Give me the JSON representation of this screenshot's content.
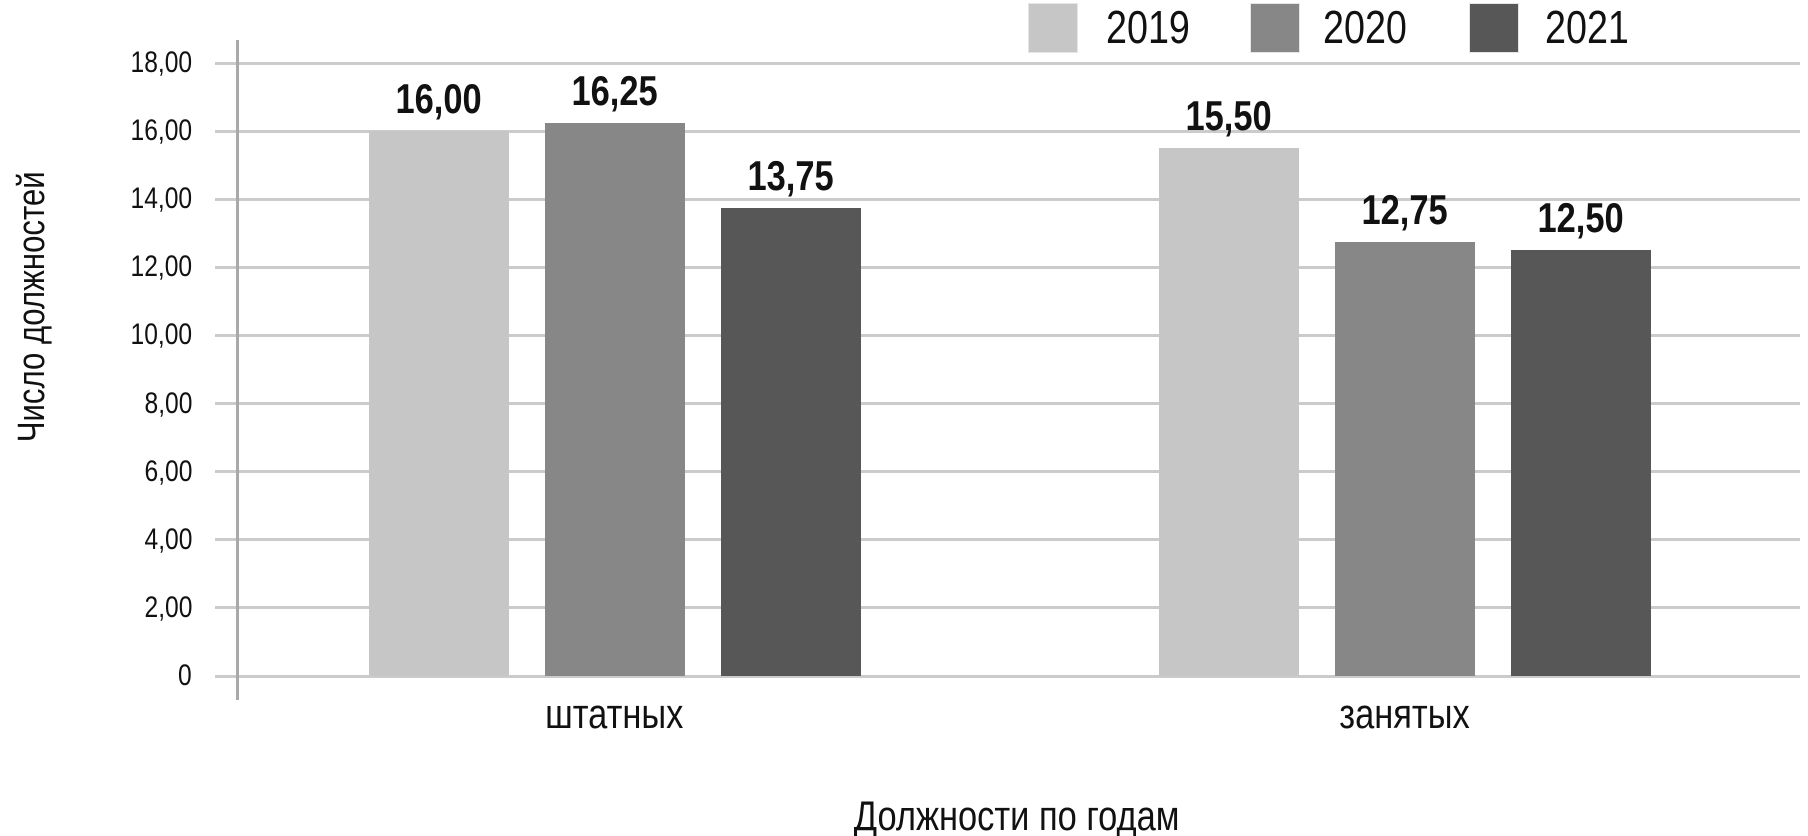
{
  "chart_data": {
    "type": "bar",
    "title": "",
    "categories": [
      "штатных",
      "занятых"
    ],
    "series": [
      {
        "name": "2019",
        "color": "#c6c6c6",
        "values": [
          16.0,
          15.5
        ],
        "labels": [
          "16,00",
          "15,50"
        ]
      },
      {
        "name": "2020",
        "color": "#878787",
        "values": [
          16.25,
          12.75
        ],
        "labels": [
          "16,25",
          "12,75"
        ]
      },
      {
        "name": "2021",
        "color": "#575757",
        "values": [
          13.75,
          12.5
        ],
        "labels": [
          "13,75",
          "12,50"
        ]
      }
    ],
    "xlabel": "Должности по годам",
    "ylabel": "Число должностей",
    "ylim": [
      0,
      18
    ],
    "yticks": [
      {
        "value": 0,
        "label": "0"
      },
      {
        "value": 2,
        "label": "2,00"
      },
      {
        "value": 4,
        "label": "4,00"
      },
      {
        "value": 6,
        "label": "6,00"
      },
      {
        "value": 8,
        "label": "8,00"
      },
      {
        "value": 10,
        "label": "10,00"
      },
      {
        "value": 12,
        "label": "12,00"
      },
      {
        "value": 14,
        "label": "14,00"
      },
      {
        "value": 16,
        "label": "16,00"
      },
      {
        "value": 18,
        "label": "18,00"
      }
    ],
    "grid": true,
    "legend_position": "top-right",
    "colors": {
      "gridline": "#cbcbcb",
      "axis": "#a9a9a9",
      "text": "#111111",
      "background": "#ffffff"
    }
  }
}
